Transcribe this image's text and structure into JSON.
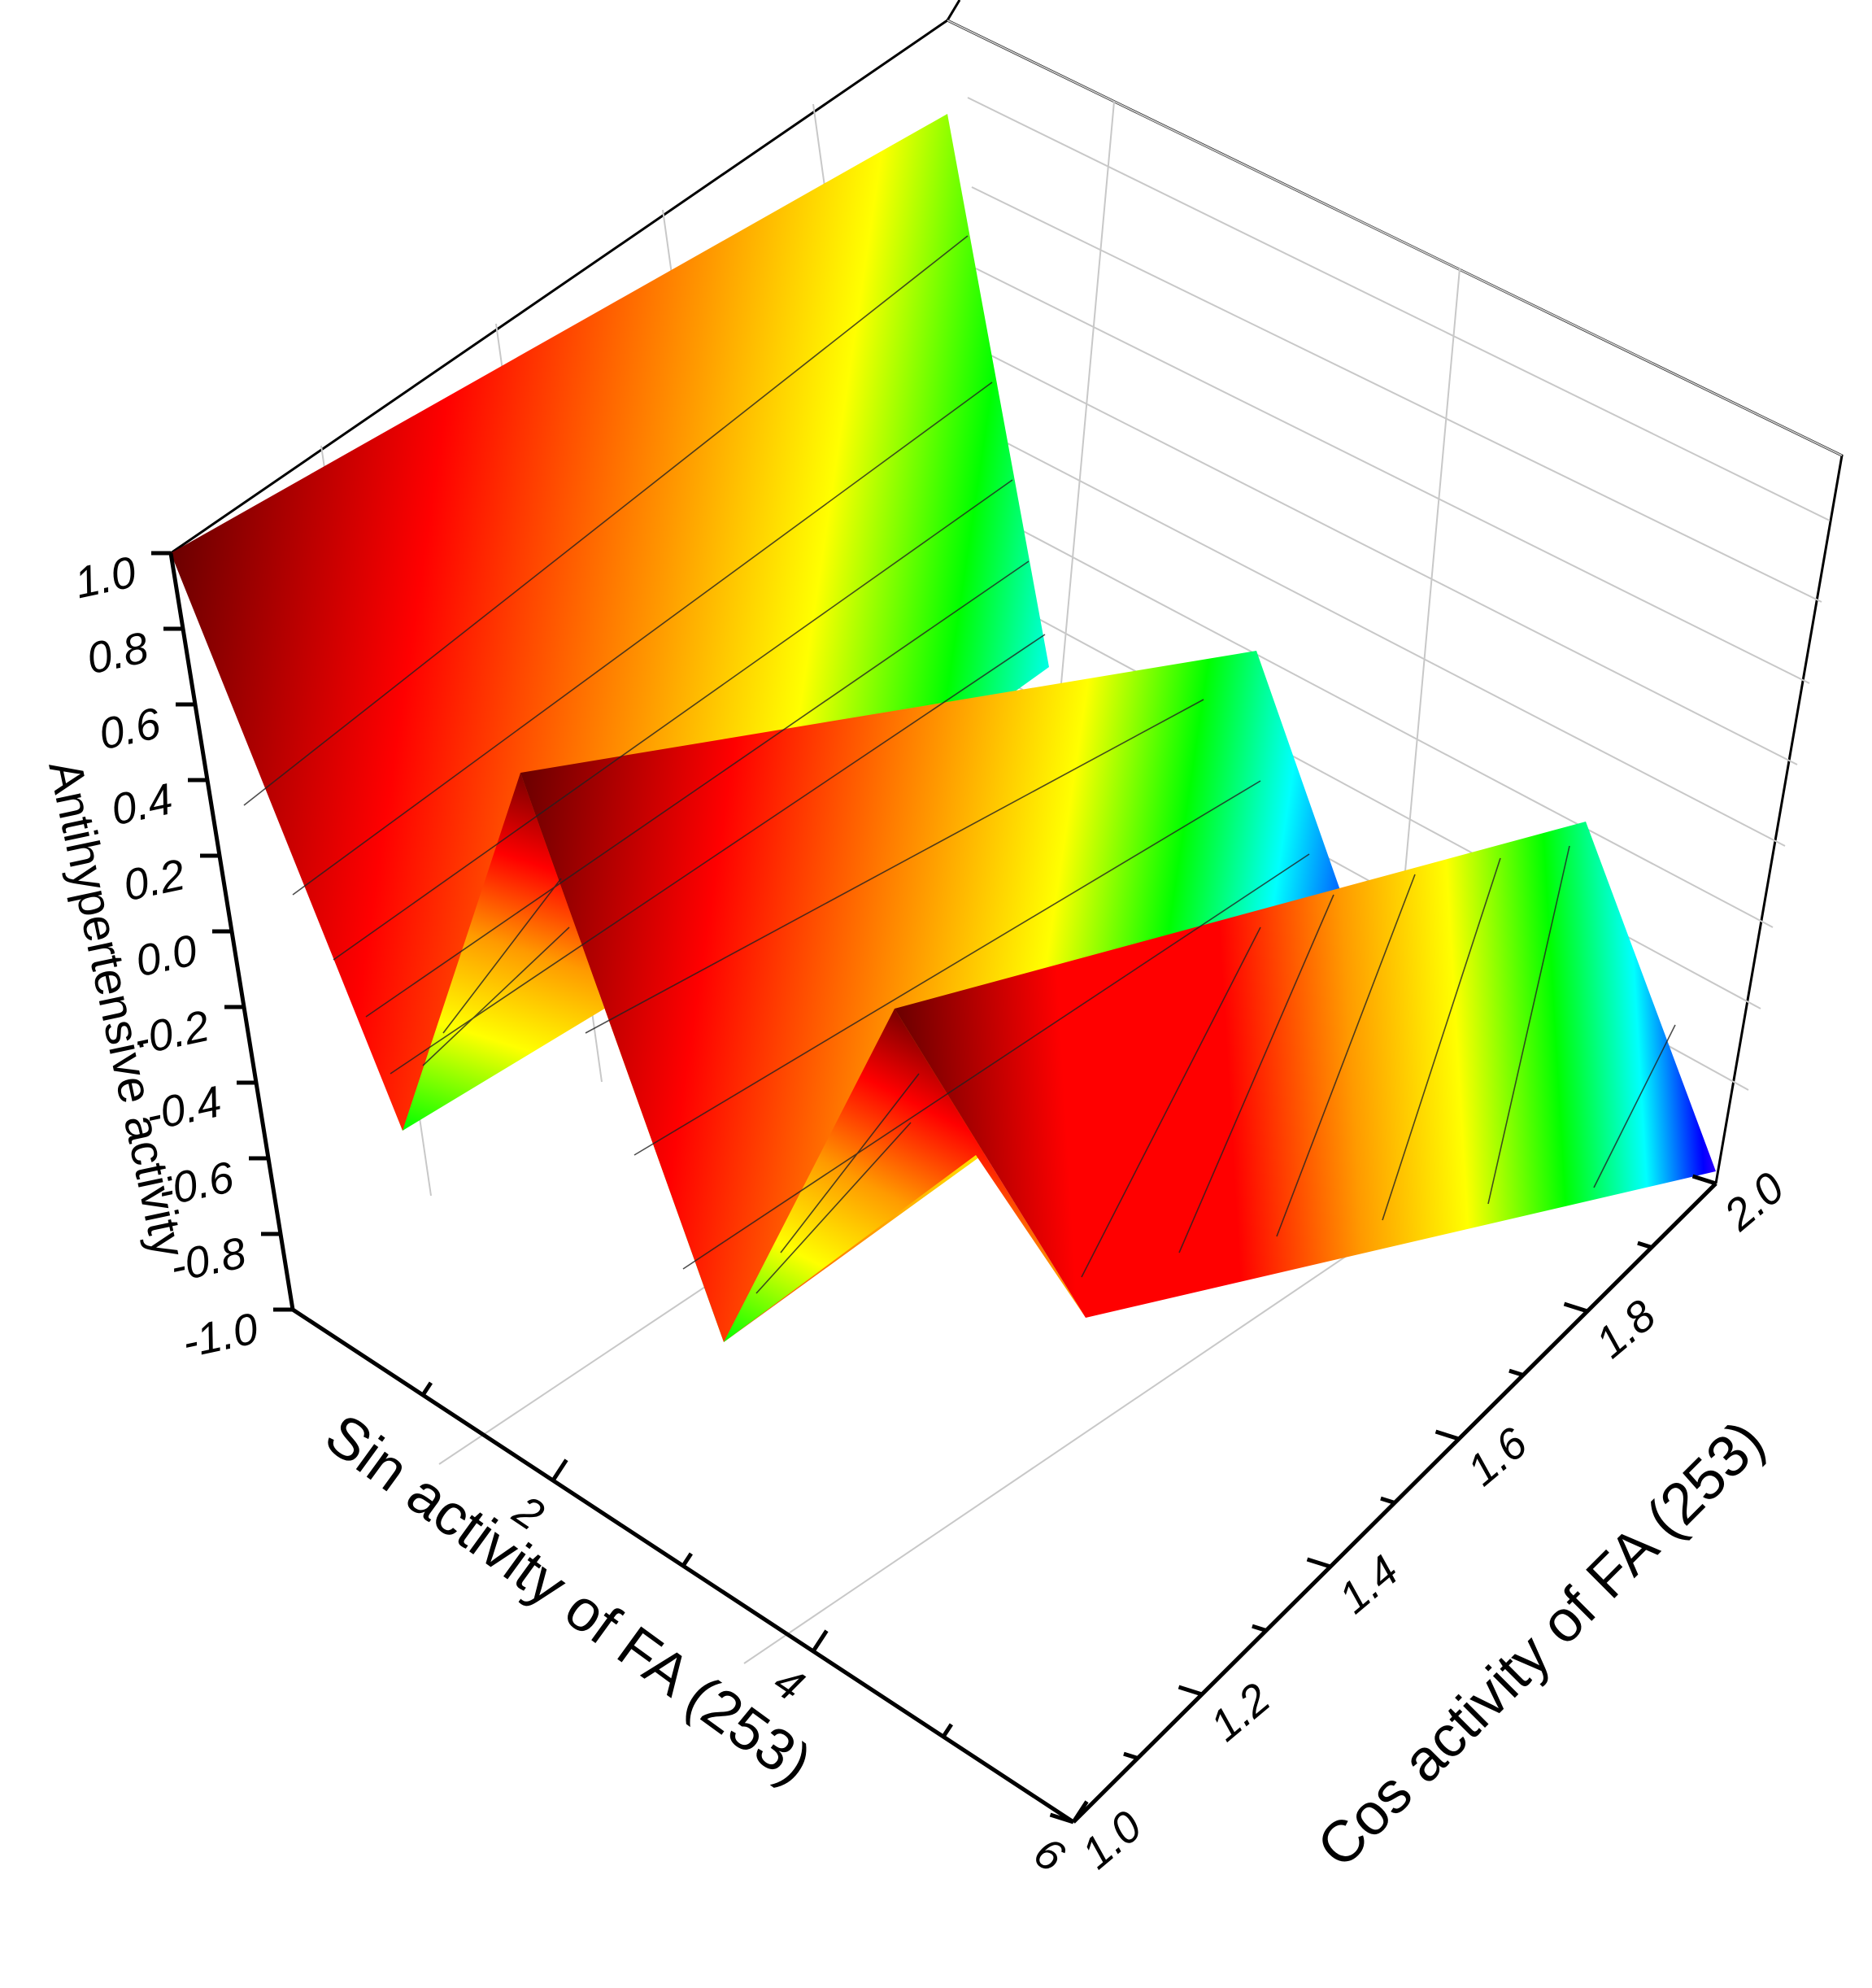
{
  "chart_data": {
    "type": "surface3d",
    "xlabel": "Sin activity of FA (253)",
    "ylabel": "Cos activity of FA (253)",
    "zlabel": "Antihypertensive activity",
    "xlim": [
      0,
      6
    ],
    "ylim": [
      1.0,
      2.0
    ],
    "zlim": [
      -1.0,
      1.0
    ],
    "x_ticks": [
      "2",
      "4",
      "6"
    ],
    "y_ticks": [
      "1.0",
      "1.2",
      "1.4",
      "1.6",
      "1.8",
      "2.0"
    ],
    "z_ticks": [
      "-1.0",
      "-0.8",
      "-0.6",
      "-0.4",
      "-0.2",
      "0.0",
      "0.2",
      "0.4",
      "0.6",
      "0.8",
      "1.0"
    ],
    "grid": true,
    "colormap": [
      "#7a0000",
      "#d40000",
      "#ff0000",
      "#ff9a00",
      "#ffff00",
      "#00ff00",
      "#00ffff",
      "#0000ff",
      "#5a00ff"
    ],
    "surface": {
      "x": [
        0.0,
        1.5,
        2.3,
        3.8,
        4.6,
        6.0
      ],
      "z_at_cos_1_0": [
        1.0,
        -0.58,
        0.52,
        -0.7,
        0.32,
        -0.75
      ],
      "z_at_cos_2_0": [
        1.0,
        -0.58,
        0.52,
        -0.7,
        0.32,
        -0.75
      ]
    }
  }
}
